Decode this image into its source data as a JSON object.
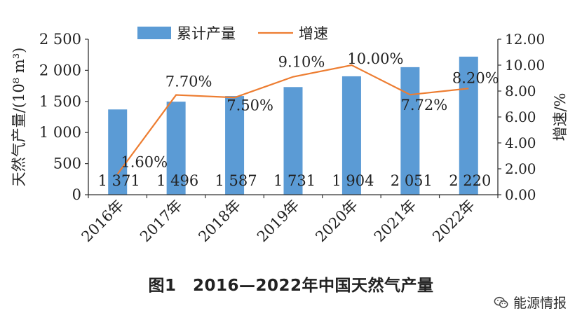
{
  "chart_data": {
    "type": "bar+line",
    "categories": [
      "2016年",
      "2017年",
      "2018年",
      "2019年",
      "2020年",
      "2021年",
      "2022年"
    ],
    "series": [
      {
        "name": "累计产量",
        "type": "bar",
        "axis": "left",
        "color": "#5b9bd5",
        "values": [
          1371,
          1496,
          1587,
          1731,
          1904,
          2051,
          2220
        ],
        "labels": [
          "1 371",
          "1 496",
          "1 587",
          "1 731",
          "1 904",
          "2 051",
          "2 220"
        ]
      },
      {
        "name": "增速",
        "type": "line",
        "axis": "right",
        "color": "#ed7d31",
        "values": [
          1.6,
          7.7,
          7.5,
          9.1,
          10.0,
          7.72,
          8.2
        ],
        "labels": [
          "1.60%",
          "7.70%",
          "7.50%",
          "9.10%",
          "10.00%",
          "7.72%",
          "8.20%"
        ]
      }
    ],
    "y_left": {
      "label": "天然气产量/(10⁸ m³)",
      "ylim": [
        0,
        2500
      ],
      "ticks": [
        0,
        500,
        1000,
        1500,
        2000,
        2500
      ],
      "tick_labels": [
        "0",
        "500",
        "1 000",
        "1 500",
        "2 000",
        "2 500"
      ]
    },
    "y_right": {
      "label": "增速/%",
      "ylim": [
        0,
        12
      ],
      "ticks": [
        0,
        2,
        4,
        6,
        8,
        10,
        12
      ],
      "tick_labels": [
        "0.00",
        "2.00",
        "4.00",
        "6.00",
        "8.00",
        "10.00",
        "12.00"
      ]
    },
    "legend": {
      "position": "top",
      "items": [
        "累计产量",
        "增速"
      ]
    },
    "grid": false
  },
  "caption": "图1　2016—2022年中国天然气产量",
  "watermark": "能源情报"
}
